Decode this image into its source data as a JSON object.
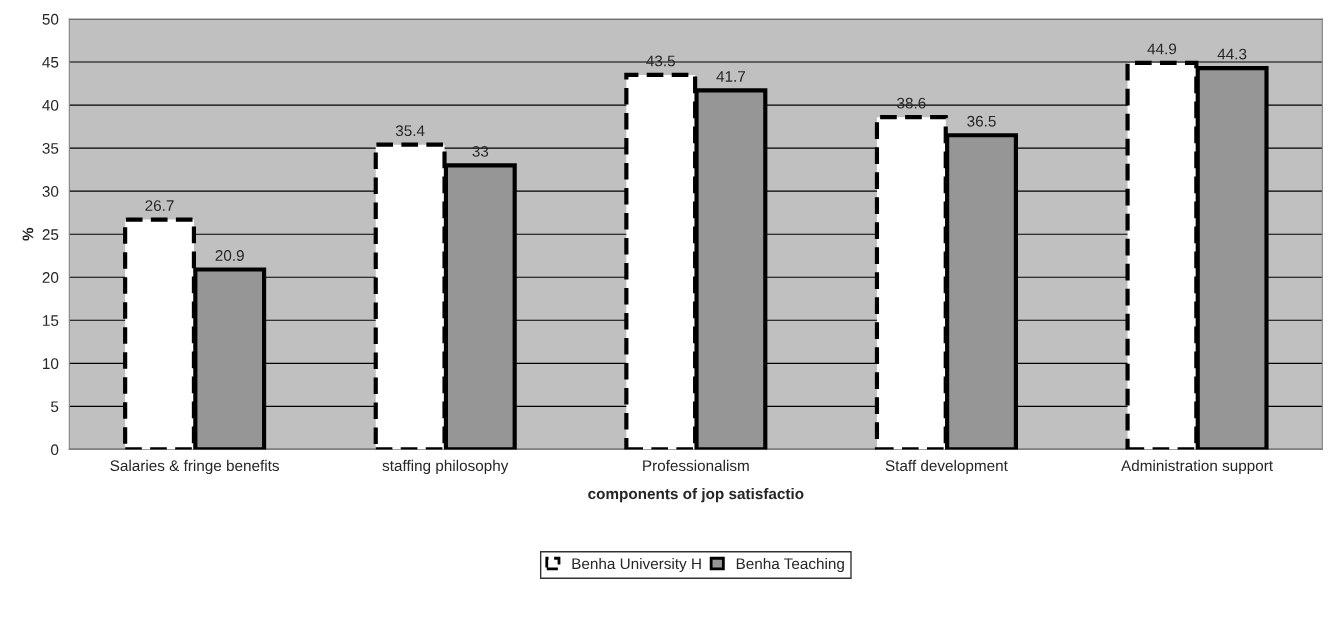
{
  "chart_data": {
    "type": "bar",
    "xlabel": "components of jop satisfactio",
    "ylabel": "%",
    "categories": [
      "Salaries & fringe benefits",
      "staffing philosophy",
      "Professionalism",
      "Staff development",
      "Administration support"
    ],
    "series": [
      {
        "name": "Benha University H",
        "color": "#ffffff",
        "line_style": "dashed",
        "values": [
          26.7,
          35.4,
          43.5,
          38.6,
          44.9
        ]
      },
      {
        "name": "Benha Teaching",
        "color": "#969696",
        "line_style": "solid",
        "values": [
          20.9,
          33,
          41.7,
          36.5,
          44.3
        ]
      }
    ],
    "ylim": [
      0,
      50
    ],
    "yticks": [
      0,
      5,
      10,
      15,
      20,
      25,
      30,
      35,
      40,
      45,
      50
    ],
    "grid": "y",
    "legend": "bottom",
    "data_labels": true
  }
}
